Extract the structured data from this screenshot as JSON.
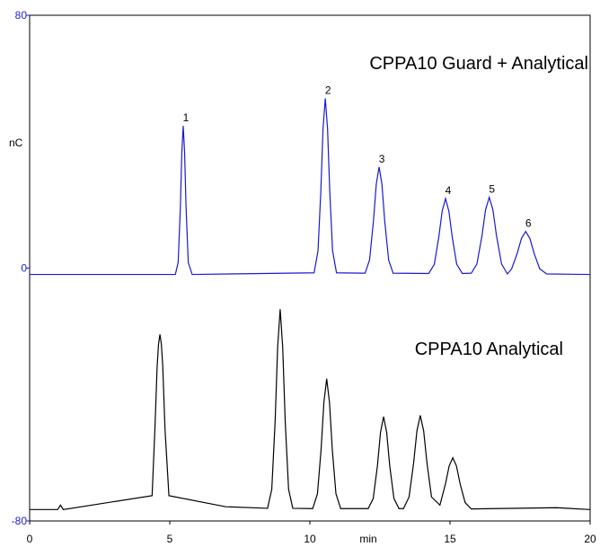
{
  "chart_data": {
    "type": "line",
    "x_label": "min",
    "y_label": "nC",
    "xlim": [
      0,
      20
    ],
    "xticks": [
      0,
      5,
      10,
      15,
      20
    ],
    "ylim": [
      -80,
      80
    ],
    "yticks": [
      -80,
      0,
      80
    ],
    "peak_labels": [
      "1",
      "2",
      "3",
      "4",
      "5",
      "6"
    ],
    "series": [
      {
        "name": "CPPA10 Guard + Analytical",
        "color": "#1a1acc",
        "x": [
          0,
          5.2,
          5.3,
          5.38,
          5.43,
          5.48,
          5.53,
          5.58,
          5.66,
          5.8,
          10.15,
          10.29,
          10.39,
          10.47,
          10.55,
          10.63,
          10.71,
          10.81,
          10.95,
          11.97,
          12.13,
          12.27,
          12.37,
          12.47,
          12.57,
          12.67,
          12.81,
          12.97,
          14.24,
          14.44,
          14.6,
          14.72,
          14.84,
          14.96,
          15.08,
          15.24,
          15.44,
          15.76,
          15.96,
          16.14,
          16.27,
          16.4,
          16.53,
          16.66,
          16.84,
          17.05,
          17.2,
          17.4,
          17.55,
          17.7,
          17.85,
          18.0,
          18.2,
          18.45,
          20
        ],
        "values": [
          -2,
          -2,
          1.8,
          19.6,
          36.5,
          45,
          36.5,
          19.6,
          1.8,
          -2,
          -1.5,
          5.5,
          24.2,
          44.2,
          53.7,
          44.2,
          24.2,
          5.5,
          -1.5,
          -1.6,
          2.6,
          15,
          26.6,
          32,
          26.6,
          15,
          2.6,
          -1.6,
          -1.7,
          1.2,
          9.8,
          18,
          22,
          18,
          9.8,
          1.2,
          -1.7,
          -1.6,
          1.3,
          10.2,
          18.5,
          22.4,
          18.5,
          10.2,
          1.3,
          -1.85,
          -0.2,
          4.7,
          9.4,
          11.6,
          9.4,
          4.7,
          -0.2,
          -1.85,
          -2
        ]
      },
      {
        "name": "CPPA10 Analytical",
        "color": "#000000",
        "x": [
          0,
          1.0,
          1.1,
          1.2,
          4.37,
          4.47,
          4.55,
          4.6,
          4.65,
          4.7,
          4.75,
          4.83,
          4.97,
          7.0,
          8.49,
          8.64,
          8.76,
          8.85,
          8.94,
          9.03,
          9.12,
          9.24,
          9.39,
          10.1,
          10.27,
          10.4,
          10.5,
          10.6,
          10.7,
          10.8,
          10.93,
          11.1,
          12.08,
          12.26,
          12.41,
          12.52,
          12.63,
          12.74,
          12.85,
          13.0,
          13.18,
          13.34,
          13.54,
          13.7,
          13.82,
          13.94,
          14.06,
          14.18,
          14.34,
          14.64,
          14.84,
          14.97,
          15.1,
          15.23,
          15.36,
          15.54,
          15.76,
          18.8,
          20
        ],
        "values": [
          -76.4,
          -76.4,
          -75,
          -76.4,
          -72,
          -50.9,
          -31,
          -24,
          -21,
          -24,
          -31,
          -50.9,
          -72,
          -75.5,
          -76,
          -70,
          -48.5,
          -25,
          -13,
          -25,
          -48.5,
          -70,
          -76,
          -76.1,
          -71.4,
          -57.4,
          -42.5,
          -35,
          -42.5,
          -57.4,
          -71.4,
          -76.1,
          -76.1,
          -72.9,
          -62.6,
          -52,
          -47,
          -52,
          -62.6,
          -72.9,
          -76.1,
          -76.1,
          -72.4,
          -61.8,
          -51.5,
          -46.6,
          -51.5,
          -61.8,
          -72.4,
          -75,
          -68.2,
          -62.6,
          -60,
          -62.6,
          -68.2,
          -74.2,
          -76.2,
          -75.8,
          -76.4
        ]
      }
    ]
  }
}
